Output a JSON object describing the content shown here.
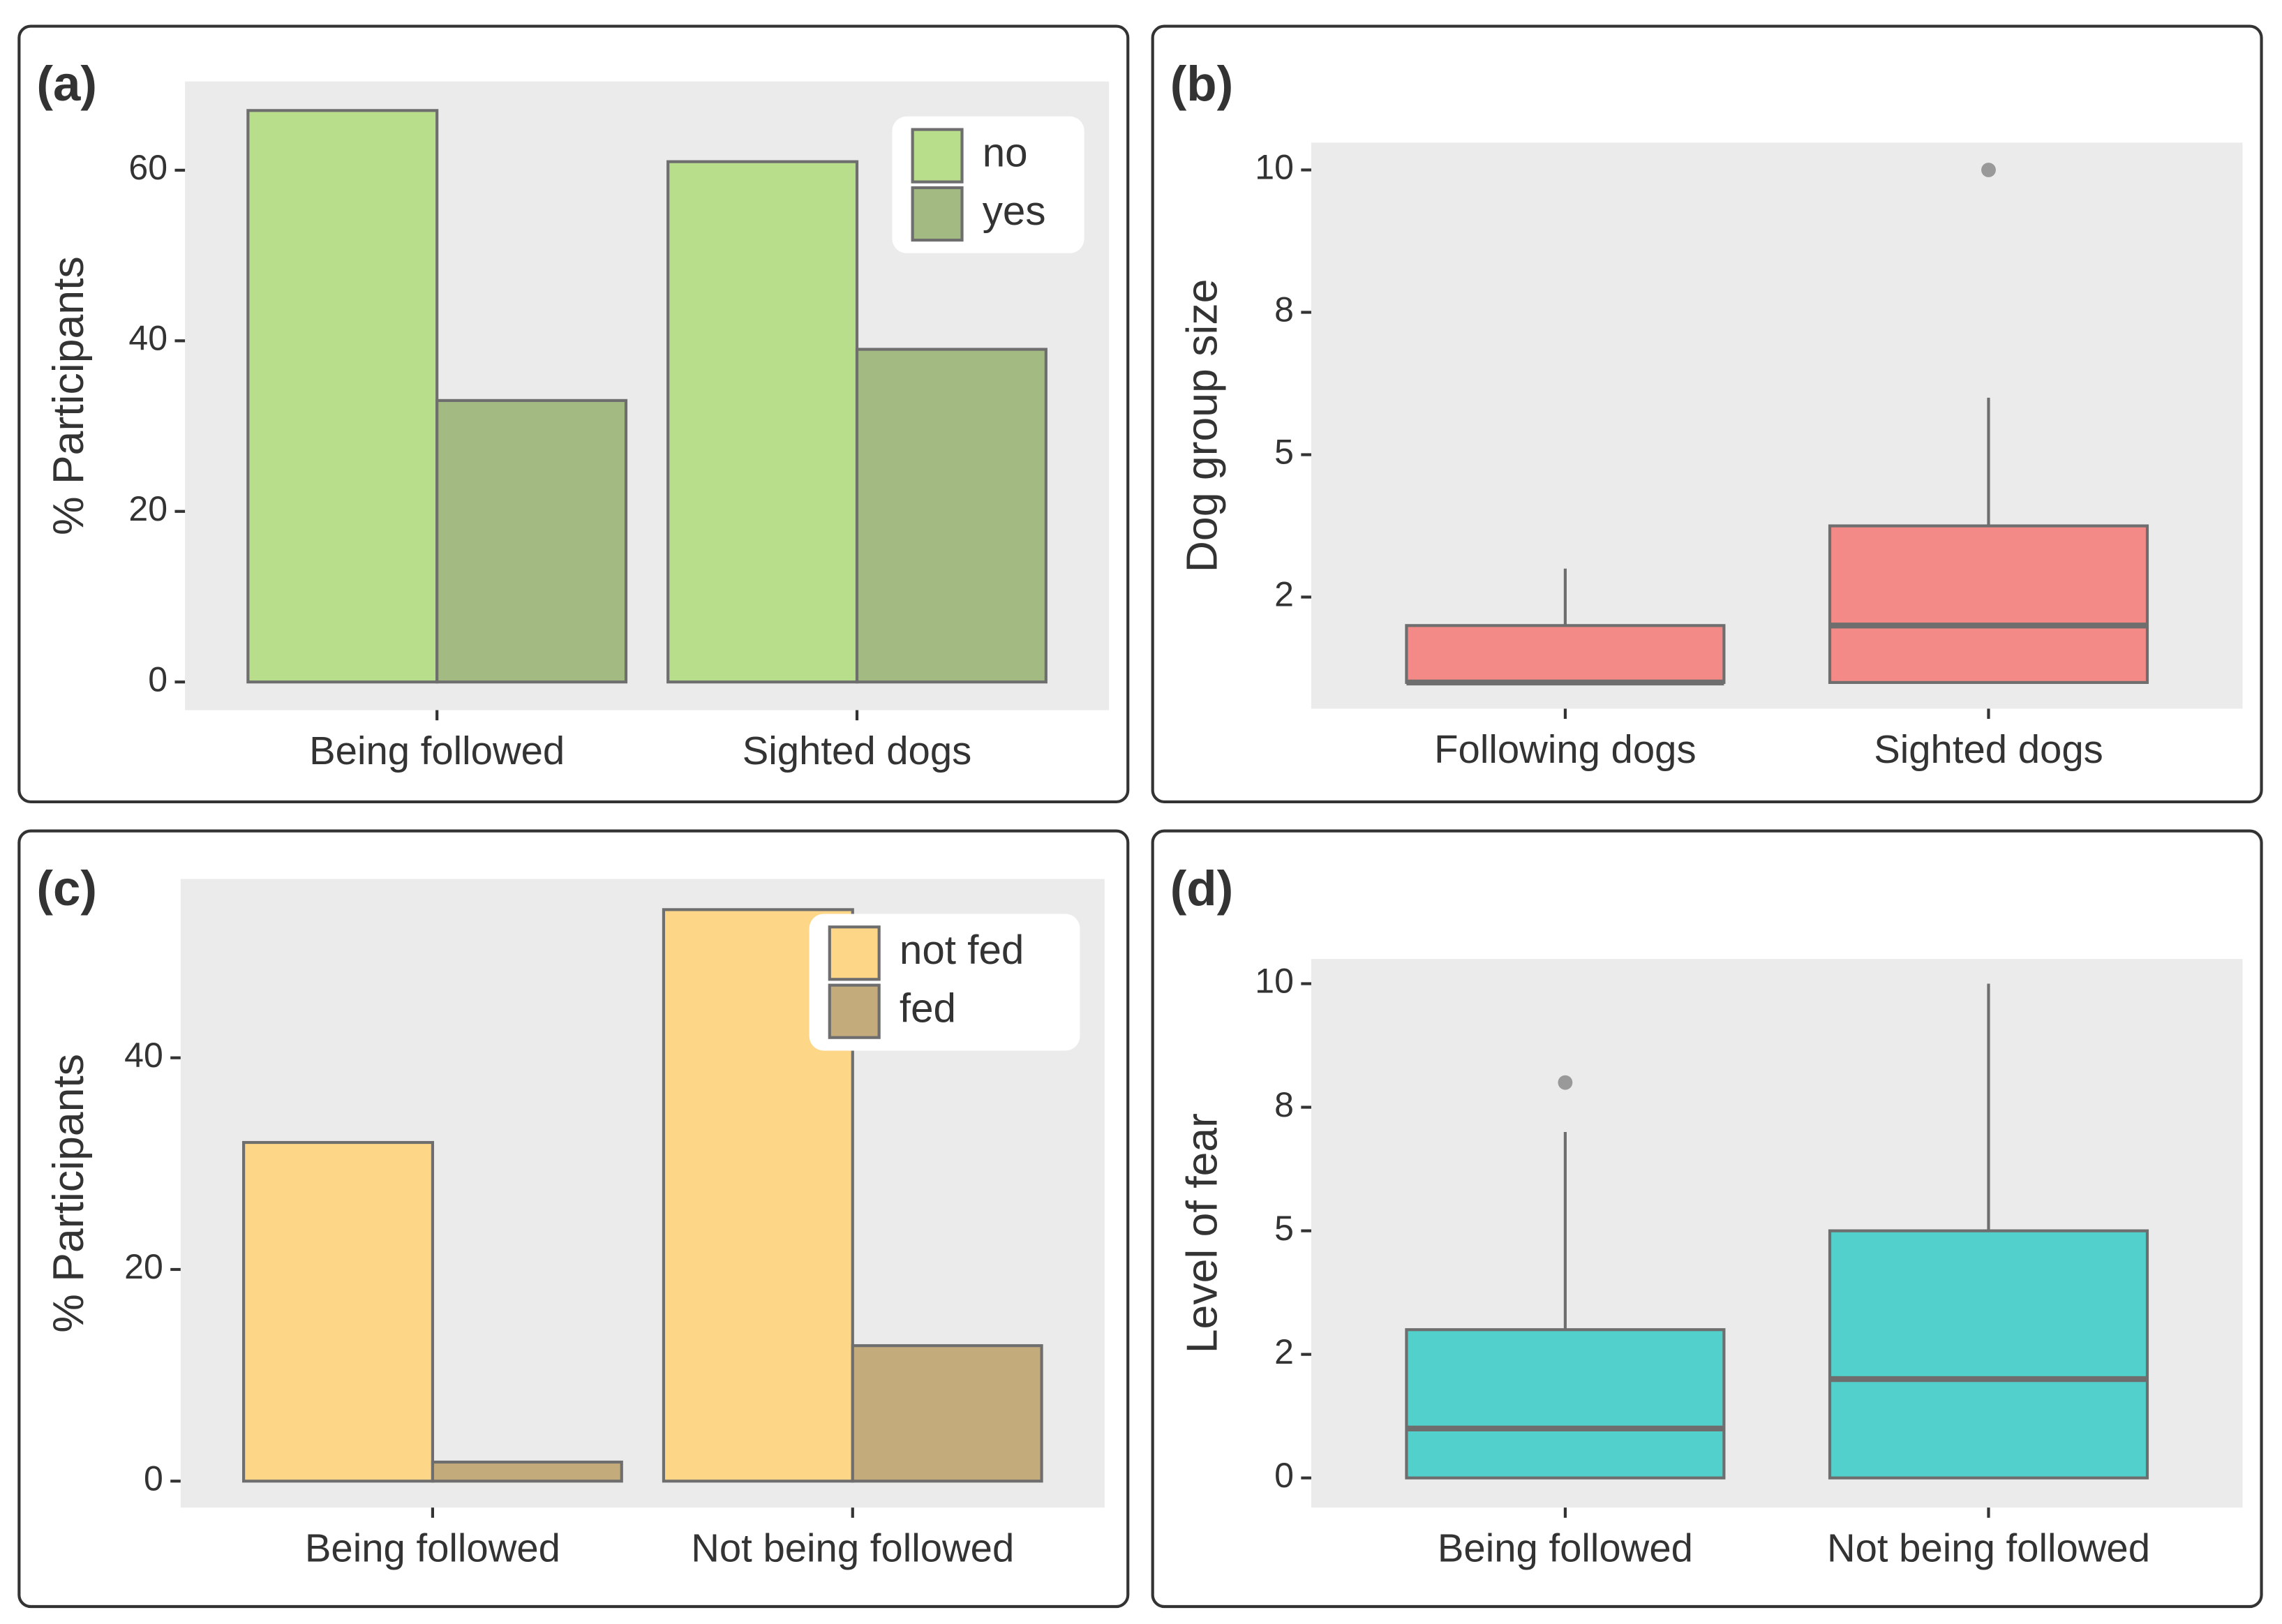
{
  "chart_data": [
    {
      "type": "bar",
      "panel_label": "(a)",
      "ylabel": "% Participants",
      "categories": [
        "Being followed",
        "Sighted dogs"
      ],
      "series": [
        {
          "name": "no",
          "color": "#b8de8b",
          "values": [
            67,
            61
          ]
        },
        {
          "name": "yes",
          "color": "#a3bb82",
          "values": [
            33,
            39
          ]
        }
      ],
      "ylim": [
        -3.3,
        70.4
      ],
      "yticks": [
        0,
        20,
        40,
        60
      ],
      "legend": "top-right"
    },
    {
      "type": "box",
      "panel_label": "(b)",
      "ylabel": "Dog group size",
      "color": "#f48a87",
      "categories": [
        "Following dogs",
        "Sighted dogs"
      ],
      "boxes": [
        {
          "min": 1,
          "q1": 1,
          "median": 1,
          "q3": 2,
          "max": 3,
          "outliers": []
        },
        {
          "min": 1,
          "q1": 1,
          "median": 2,
          "q3": 3.75,
          "max": 6,
          "outliers": [
            10
          ]
        }
      ],
      "ylim": [
        0.54,
        10.48
      ],
      "yticks": [
        {
          "value": 2.5,
          "label": "2"
        },
        5,
        {
          "value": 7.5,
          "label": "8"
        },
        10
      ]
    },
    {
      "type": "bar",
      "panel_label": "(c)",
      "ylabel": "% Participants",
      "categories": [
        "Being followed",
        "Not being followed"
      ],
      "series": [
        {
          "name": "not fed",
          "color": "#fed687",
          "values": [
            32,
            54
          ]
        },
        {
          "name": "fed",
          "color": "#c4ab7c",
          "values": [
            1.8,
            12.8
          ]
        }
      ],
      "ylim": [
        -2.5,
        56.9
      ],
      "yticks": [
        0,
        20,
        40
      ],
      "legend": "top-right"
    },
    {
      "type": "box",
      "panel_label": "(d)",
      "ylabel": "Level of fear",
      "color": "#52d0cb",
      "categories": [
        "Being followed",
        "Not being followed"
      ],
      "boxes": [
        {
          "min": 0,
          "q1": 0,
          "median": 1,
          "q3": 3,
          "max": 7,
          "outliers": [
            8
          ]
        },
        {
          "min": 0,
          "q1": 0,
          "median": 2,
          "q3": 5,
          "max": 10,
          "outliers": []
        }
      ],
      "ylim": [
        -0.6,
        10.5
      ],
      "yticks": [
        0,
        {
          "value": 2.5,
          "label": "2"
        },
        5,
        {
          "value": 7.5,
          "label": "8"
        },
        10
      ]
    }
  ]
}
